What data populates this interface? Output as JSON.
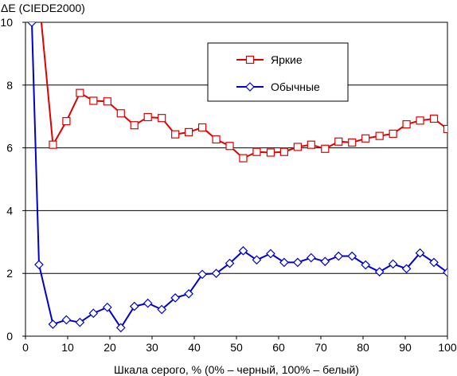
{
  "chart_data": {
    "type": "line",
    "title": "",
    "ylabel": "ΔE (CIEDE2000)",
    "xlabel": "Шкала серого, % (0% – черный, 100% – белый)",
    "xlim": [
      0,
      100
    ],
    "ylim": [
      0,
      10
    ],
    "x_ticks": [
      0,
      10,
      20,
      30,
      40,
      50,
      60,
      70,
      80,
      90,
      100
    ],
    "y_ticks": [
      0,
      2,
      4,
      6,
      8,
      10
    ],
    "x_tick_labels": [
      "0",
      "10",
      "20",
      "30",
      "40",
      "50",
      "60",
      "70",
      "80",
      "90",
      "100"
    ],
    "y_tick_labels": [
      "0",
      "2",
      "4",
      "6",
      "8",
      "10"
    ],
    "grid": "horizontal",
    "legend": "top-right",
    "series": [
      {
        "name": "Яркие",
        "color": "#e00000",
        "marker": "square",
        "x": [
          3.2,
          6.5,
          9.7,
          12.9,
          16.1,
          19.4,
          22.6,
          25.8,
          29.0,
          32.3,
          35.5,
          38.7,
          41.9,
          45.2,
          48.4,
          51.6,
          54.8,
          58.1,
          61.3,
          64.5,
          67.7,
          71.0,
          74.2,
          77.4,
          80.6,
          83.9,
          87.1,
          90.3,
          93.5,
          96.8,
          100
        ],
        "values": [
          10.8,
          6.1,
          6.85,
          7.75,
          7.5,
          7.48,
          7.1,
          6.72,
          6.98,
          6.95,
          6.43,
          6.5,
          6.65,
          6.27,
          6.06,
          5.67,
          5.87,
          5.85,
          5.87,
          6.03,
          6.1,
          5.97,
          6.2,
          6.17,
          6.3,
          6.38,
          6.45,
          6.75,
          6.87,
          6.93,
          6.6
        ]
      },
      {
        "name": "Обычные",
        "color": "#0000cc",
        "marker": "diamond",
        "x": [
          1.5,
          3.2,
          6.5,
          9.7,
          12.9,
          16.1,
          19.4,
          22.6,
          25.8,
          29.0,
          32.3,
          35.5,
          38.7,
          41.9,
          45.2,
          48.4,
          51.6,
          54.8,
          58.1,
          61.3,
          64.5,
          67.7,
          71.0,
          74.2,
          77.4,
          80.6,
          83.9,
          87.1,
          90.3,
          93.5,
          96.8,
          100
        ],
        "values": [
          10.0,
          2.28,
          0.38,
          0.52,
          0.44,
          0.73,
          0.92,
          0.27,
          0.95,
          1.05,
          0.85,
          1.22,
          1.35,
          1.97,
          2.0,
          2.32,
          2.72,
          2.43,
          2.63,
          2.35,
          2.35,
          2.5,
          2.38,
          2.55,
          2.55,
          2.27,
          2.05,
          2.3,
          2.15,
          2.65,
          2.35,
          2.03
        ]
      }
    ]
  }
}
